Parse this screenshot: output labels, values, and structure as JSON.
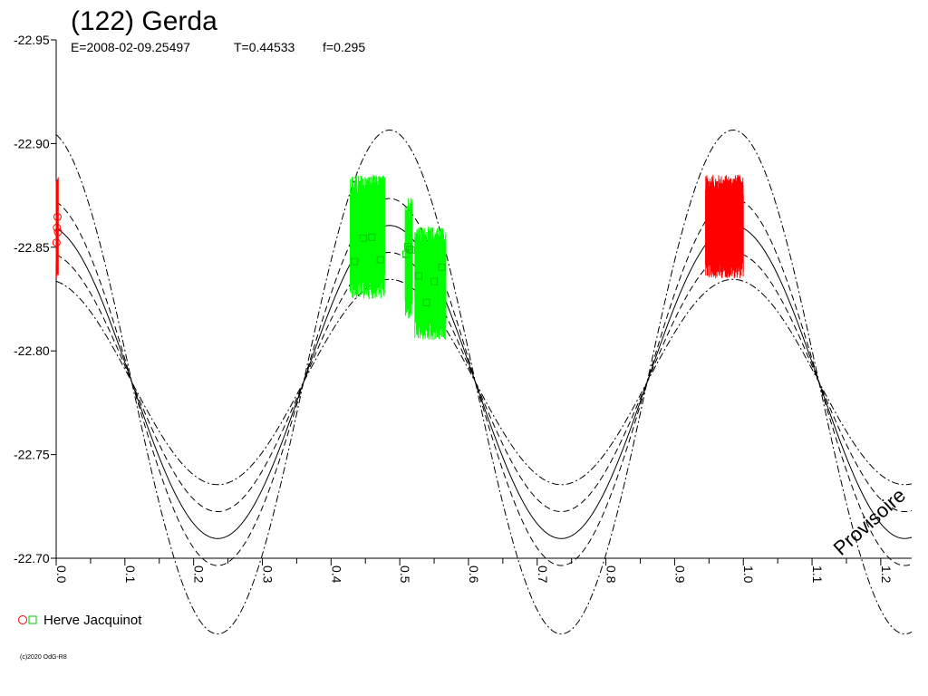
{
  "chart_data": {
    "type": "scatter",
    "title": "(122) Gerda",
    "epoch_label": "E=2008-02-09.25497",
    "period_label": "T=0.44533",
    "f_label": "f=0.295",
    "x_ticks": [
      "0.0",
      "0.1",
      "0.2",
      "0.3",
      "0.4",
      "0.5",
      "0.6",
      "0.7",
      "0.8",
      "0.9",
      "1.0",
      "1.1",
      "1.2"
    ],
    "y_ticks": [
      "-22.95",
      "-22.90",
      "-22.85",
      "-22.80",
      "-22.75",
      "-22.70"
    ],
    "xlim": [
      0.0,
      1.245
    ],
    "ylim": [
      -22.95,
      -22.7
    ],
    "y_inverted": true,
    "model_curves": {
      "mean": -22.785,
      "phase_of_max": -0.015,
      "amplitudes": [
        {
          "amp": 0.0495,
          "style": "dash-dot"
        },
        {
          "amp": 0.0625,
          "style": "dashed"
        },
        {
          "amp": 0.0755,
          "style": "solid"
        },
        {
          "amp": 0.0885,
          "style": "dashed"
        },
        {
          "amp": 0.1215,
          "style": "dash-dot"
        }
      ]
    },
    "series": [
      {
        "name": "Herve Jacquinot",
        "color": "#ff0000",
        "marker": "circle",
        "segments": [
          {
            "x": [
              0.0,
              0.003
            ],
            "y": [
              -22.835,
              -22.885
            ]
          },
          {
            "x": [
              0.945,
              1.0
            ],
            "y": [
              -22.835,
              -22.885
            ]
          }
        ]
      },
      {
        "name": "Herve Jacquinot",
        "color": "#00ff00",
        "marker": "square",
        "segments": [
          {
            "x": [
              0.428,
              0.478
            ],
            "y": [
              -22.825,
              -22.885
            ]
          },
          {
            "x": [
              0.508,
              0.518
            ],
            "y": [
              -22.815,
              -22.875
            ]
          },
          {
            "x": [
              0.522,
              0.567
            ],
            "y": [
              -22.805,
              -22.86
            ]
          }
        ]
      }
    ],
    "legend_label": "Herve Jacquinot",
    "watermark": "Provisoire",
    "credit": "(c)2020 OdG-R8",
    "grid": false
  }
}
